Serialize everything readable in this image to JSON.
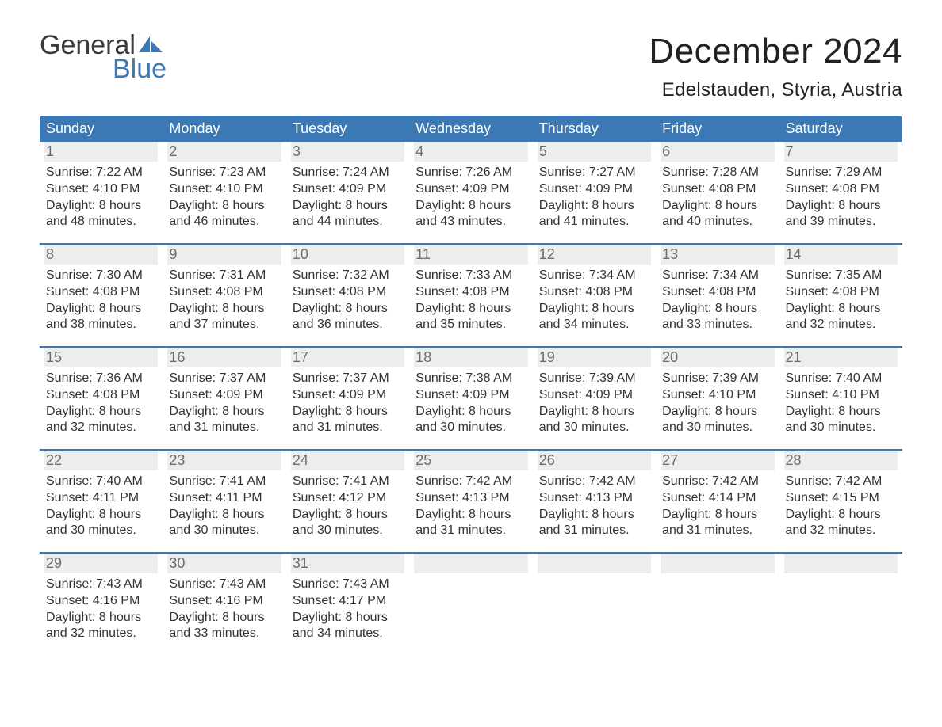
{
  "logo": {
    "word1": "General",
    "word2": "Blue",
    "sail_color": "#3c78b4",
    "text_color_gray": "#3a3a3a"
  },
  "header": {
    "month_title": "December 2024",
    "location": "Edelstauden, Styria, Austria"
  },
  "calendar": {
    "type": "calendar-table",
    "header_bg": "#3c78b4",
    "header_text_color": "#ffffff",
    "week_border_color": "#3c78b4",
    "daynum_bg": "#eceded",
    "daynum_color": "#6c6c6c",
    "body_text_color": "#333333",
    "background_color": "#ffffff",
    "weekday_fontsize": 18,
    "daynum_fontsize": 18,
    "body_fontsize": 16,
    "weekdays": [
      "Sunday",
      "Monday",
      "Tuesday",
      "Wednesday",
      "Thursday",
      "Friday",
      "Saturday"
    ],
    "weeks": [
      [
        {
          "n": "1",
          "sunrise": "Sunrise: 7:22 AM",
          "sunset": "Sunset: 4:10 PM",
          "d1": "Daylight: 8 hours",
          "d2": "and 48 minutes."
        },
        {
          "n": "2",
          "sunrise": "Sunrise: 7:23 AM",
          "sunset": "Sunset: 4:10 PM",
          "d1": "Daylight: 8 hours",
          "d2": "and 46 minutes."
        },
        {
          "n": "3",
          "sunrise": "Sunrise: 7:24 AM",
          "sunset": "Sunset: 4:09 PM",
          "d1": "Daylight: 8 hours",
          "d2": "and 44 minutes."
        },
        {
          "n": "4",
          "sunrise": "Sunrise: 7:26 AM",
          "sunset": "Sunset: 4:09 PM",
          "d1": "Daylight: 8 hours",
          "d2": "and 43 minutes."
        },
        {
          "n": "5",
          "sunrise": "Sunrise: 7:27 AM",
          "sunset": "Sunset: 4:09 PM",
          "d1": "Daylight: 8 hours",
          "d2": "and 41 minutes."
        },
        {
          "n": "6",
          "sunrise": "Sunrise: 7:28 AM",
          "sunset": "Sunset: 4:08 PM",
          "d1": "Daylight: 8 hours",
          "d2": "and 40 minutes."
        },
        {
          "n": "7",
          "sunrise": "Sunrise: 7:29 AM",
          "sunset": "Sunset: 4:08 PM",
          "d1": "Daylight: 8 hours",
          "d2": "and 39 minutes."
        }
      ],
      [
        {
          "n": "8",
          "sunrise": "Sunrise: 7:30 AM",
          "sunset": "Sunset: 4:08 PM",
          "d1": "Daylight: 8 hours",
          "d2": "and 38 minutes."
        },
        {
          "n": "9",
          "sunrise": "Sunrise: 7:31 AM",
          "sunset": "Sunset: 4:08 PM",
          "d1": "Daylight: 8 hours",
          "d2": "and 37 minutes."
        },
        {
          "n": "10",
          "sunrise": "Sunrise: 7:32 AM",
          "sunset": "Sunset: 4:08 PM",
          "d1": "Daylight: 8 hours",
          "d2": "and 36 minutes."
        },
        {
          "n": "11",
          "sunrise": "Sunrise: 7:33 AM",
          "sunset": "Sunset: 4:08 PM",
          "d1": "Daylight: 8 hours",
          "d2": "and 35 minutes."
        },
        {
          "n": "12",
          "sunrise": "Sunrise: 7:34 AM",
          "sunset": "Sunset: 4:08 PM",
          "d1": "Daylight: 8 hours",
          "d2": "and 34 minutes."
        },
        {
          "n": "13",
          "sunrise": "Sunrise: 7:34 AM",
          "sunset": "Sunset: 4:08 PM",
          "d1": "Daylight: 8 hours",
          "d2": "and 33 minutes."
        },
        {
          "n": "14",
          "sunrise": "Sunrise: 7:35 AM",
          "sunset": "Sunset: 4:08 PM",
          "d1": "Daylight: 8 hours",
          "d2": "and 32 minutes."
        }
      ],
      [
        {
          "n": "15",
          "sunrise": "Sunrise: 7:36 AM",
          "sunset": "Sunset: 4:08 PM",
          "d1": "Daylight: 8 hours",
          "d2": "and 32 minutes."
        },
        {
          "n": "16",
          "sunrise": "Sunrise: 7:37 AM",
          "sunset": "Sunset: 4:09 PM",
          "d1": "Daylight: 8 hours",
          "d2": "and 31 minutes."
        },
        {
          "n": "17",
          "sunrise": "Sunrise: 7:37 AM",
          "sunset": "Sunset: 4:09 PM",
          "d1": "Daylight: 8 hours",
          "d2": "and 31 minutes."
        },
        {
          "n": "18",
          "sunrise": "Sunrise: 7:38 AM",
          "sunset": "Sunset: 4:09 PM",
          "d1": "Daylight: 8 hours",
          "d2": "and 30 minutes."
        },
        {
          "n": "19",
          "sunrise": "Sunrise: 7:39 AM",
          "sunset": "Sunset: 4:09 PM",
          "d1": "Daylight: 8 hours",
          "d2": "and 30 minutes."
        },
        {
          "n": "20",
          "sunrise": "Sunrise: 7:39 AM",
          "sunset": "Sunset: 4:10 PM",
          "d1": "Daylight: 8 hours",
          "d2": "and 30 minutes."
        },
        {
          "n": "21",
          "sunrise": "Sunrise: 7:40 AM",
          "sunset": "Sunset: 4:10 PM",
          "d1": "Daylight: 8 hours",
          "d2": "and 30 minutes."
        }
      ],
      [
        {
          "n": "22",
          "sunrise": "Sunrise: 7:40 AM",
          "sunset": "Sunset: 4:11 PM",
          "d1": "Daylight: 8 hours",
          "d2": "and 30 minutes."
        },
        {
          "n": "23",
          "sunrise": "Sunrise: 7:41 AM",
          "sunset": "Sunset: 4:11 PM",
          "d1": "Daylight: 8 hours",
          "d2": "and 30 minutes."
        },
        {
          "n": "24",
          "sunrise": "Sunrise: 7:41 AM",
          "sunset": "Sunset: 4:12 PM",
          "d1": "Daylight: 8 hours",
          "d2": "and 30 minutes."
        },
        {
          "n": "25",
          "sunrise": "Sunrise: 7:42 AM",
          "sunset": "Sunset: 4:13 PM",
          "d1": "Daylight: 8 hours",
          "d2": "and 31 minutes."
        },
        {
          "n": "26",
          "sunrise": "Sunrise: 7:42 AM",
          "sunset": "Sunset: 4:13 PM",
          "d1": "Daylight: 8 hours",
          "d2": "and 31 minutes."
        },
        {
          "n": "27",
          "sunrise": "Sunrise: 7:42 AM",
          "sunset": "Sunset: 4:14 PM",
          "d1": "Daylight: 8 hours",
          "d2": "and 31 minutes."
        },
        {
          "n": "28",
          "sunrise": "Sunrise: 7:42 AM",
          "sunset": "Sunset: 4:15 PM",
          "d1": "Daylight: 8 hours",
          "d2": "and 32 minutes."
        }
      ],
      [
        {
          "n": "29",
          "sunrise": "Sunrise: 7:43 AM",
          "sunset": "Sunset: 4:16 PM",
          "d1": "Daylight: 8 hours",
          "d2": "and 32 minutes."
        },
        {
          "n": "30",
          "sunrise": "Sunrise: 7:43 AM",
          "sunset": "Sunset: 4:16 PM",
          "d1": "Daylight: 8 hours",
          "d2": "and 33 minutes."
        },
        {
          "n": "31",
          "sunrise": "Sunrise: 7:43 AM",
          "sunset": "Sunset: 4:17 PM",
          "d1": "Daylight: 8 hours",
          "d2": "and 34 minutes."
        },
        {
          "empty": true
        },
        {
          "empty": true
        },
        {
          "empty": true
        },
        {
          "empty": true
        }
      ]
    ]
  }
}
